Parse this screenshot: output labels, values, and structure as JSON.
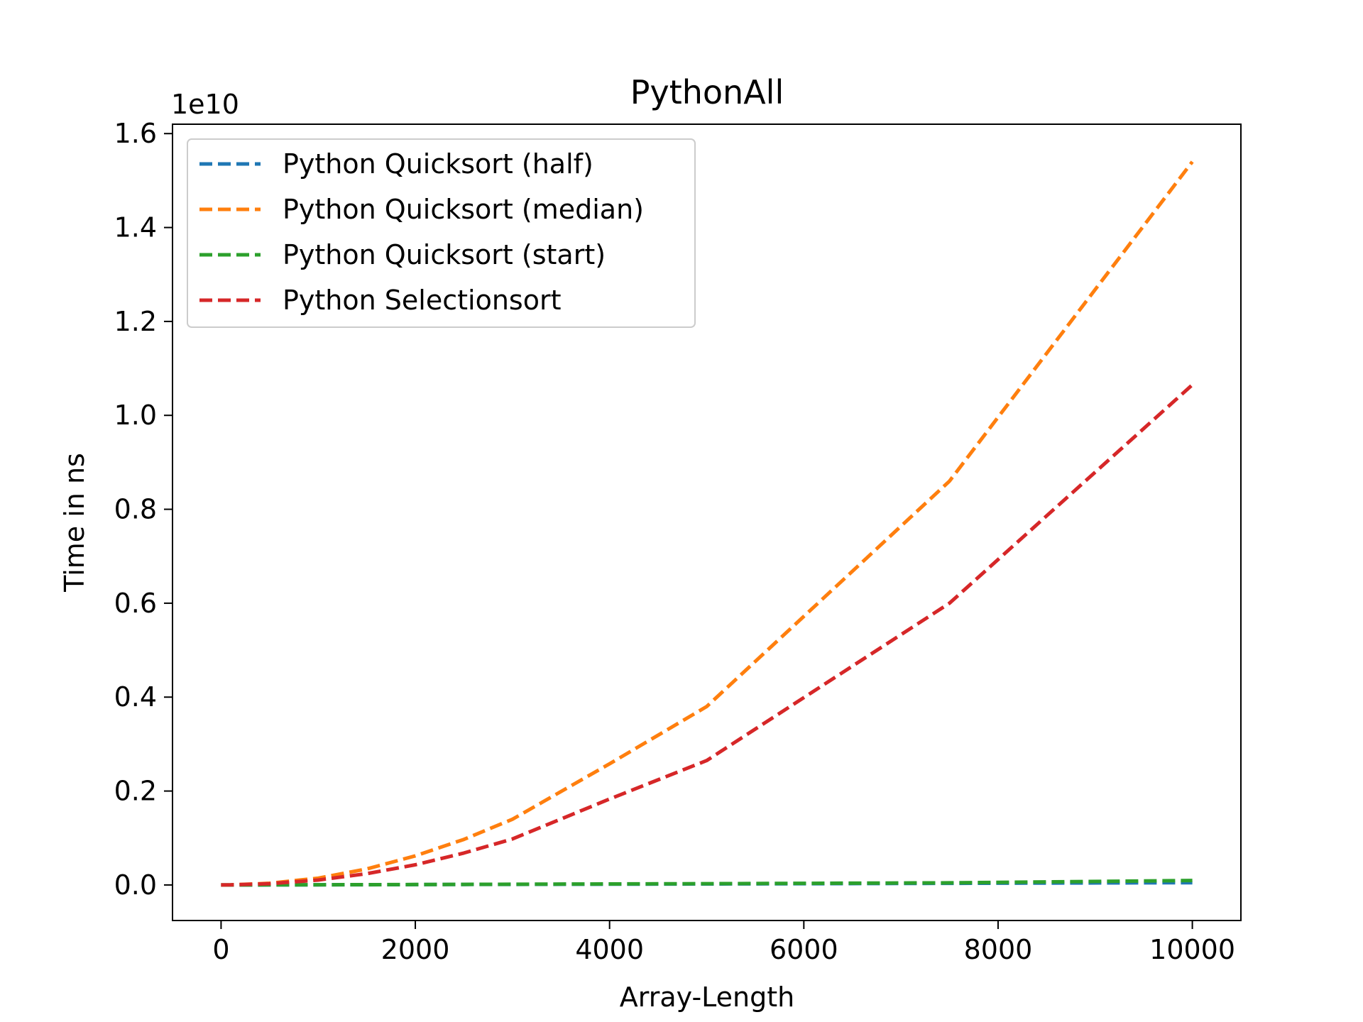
{
  "chart_data": {
    "type": "line",
    "title": "PythonAll",
    "xlabel": "Array-Length",
    "ylabel": "Time in ns",
    "y_offset_label": "1e10",
    "xlim": [
      -500,
      10500
    ],
    "ylim": [
      -0.0757,
      1.62
    ],
    "xticks": [
      0,
      2000,
      4000,
      6000,
      8000,
      10000
    ],
    "xtick_labels": [
      "0",
      "2000",
      "4000",
      "6000",
      "8000",
      "10000"
    ],
    "yticks": [
      0.0,
      0.2,
      0.4,
      0.6,
      0.8,
      1.0,
      1.2,
      1.4,
      1.6
    ],
    "ytick_labels": [
      "0.0",
      "0.2",
      "0.4",
      "0.6",
      "0.8",
      "1.0",
      "1.2",
      "1.4",
      "1.6"
    ],
    "grid": false,
    "legend_position": "top-left",
    "x": [
      0,
      100,
      500,
      1000,
      1500,
      2000,
      2500,
      3000,
      4000,
      5000,
      7500,
      10000
    ],
    "series": [
      {
        "name": "Python Quicksort (half)",
        "color": "#1f77b4",
        "values": [
          0.0,
          0.0,
          0.0001,
          0.0003,
          0.0005,
          0.0007,
          0.001,
          0.0012,
          0.0017,
          0.0022,
          0.0035,
          0.0049
        ]
      },
      {
        "name": "Python Quicksort (median)",
        "color": "#ff7f0e",
        "values": [
          0.0,
          0.0001,
          0.0036,
          0.0145,
          0.034,
          0.062,
          0.097,
          0.14,
          0.258,
          0.38,
          0.86,
          1.54
        ]
      },
      {
        "name": "Python Quicksort (start)",
        "color": "#2ca02c",
        "values": [
          0.0,
          0.0,
          0.0002,
          0.0004,
          0.0006,
          0.0009,
          0.0012,
          0.0015,
          0.0021,
          0.0028,
          0.0045,
          0.0095
        ]
      },
      {
        "name": "Python Selectionsort",
        "color": "#d62728",
        "values": [
          0.0,
          0.0001,
          0.0027,
          0.0105,
          0.024,
          0.043,
          0.068,
          0.098,
          0.183,
          0.265,
          0.6,
          1.065
        ]
      }
    ]
  }
}
